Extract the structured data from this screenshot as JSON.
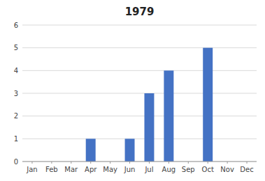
{
  "chart_data": {
    "type": "bar",
    "title": "1979",
    "categories": [
      "Jan",
      "Feb",
      "Mar",
      "Apr",
      "May",
      "Jun",
      "Jul",
      "Aug",
      "Sep",
      "Oct",
      "Nov",
      "Dec"
    ],
    "values": [
      0,
      0,
      0,
      1,
      0,
      1,
      3,
      4,
      0,
      5,
      0,
      0
    ],
    "color": "#4472C4",
    "ylim": [
      0,
      6
    ],
    "yticks": [
      0,
      1,
      2,
      3,
      4,
      5,
      6
    ],
    "grid": true
  }
}
